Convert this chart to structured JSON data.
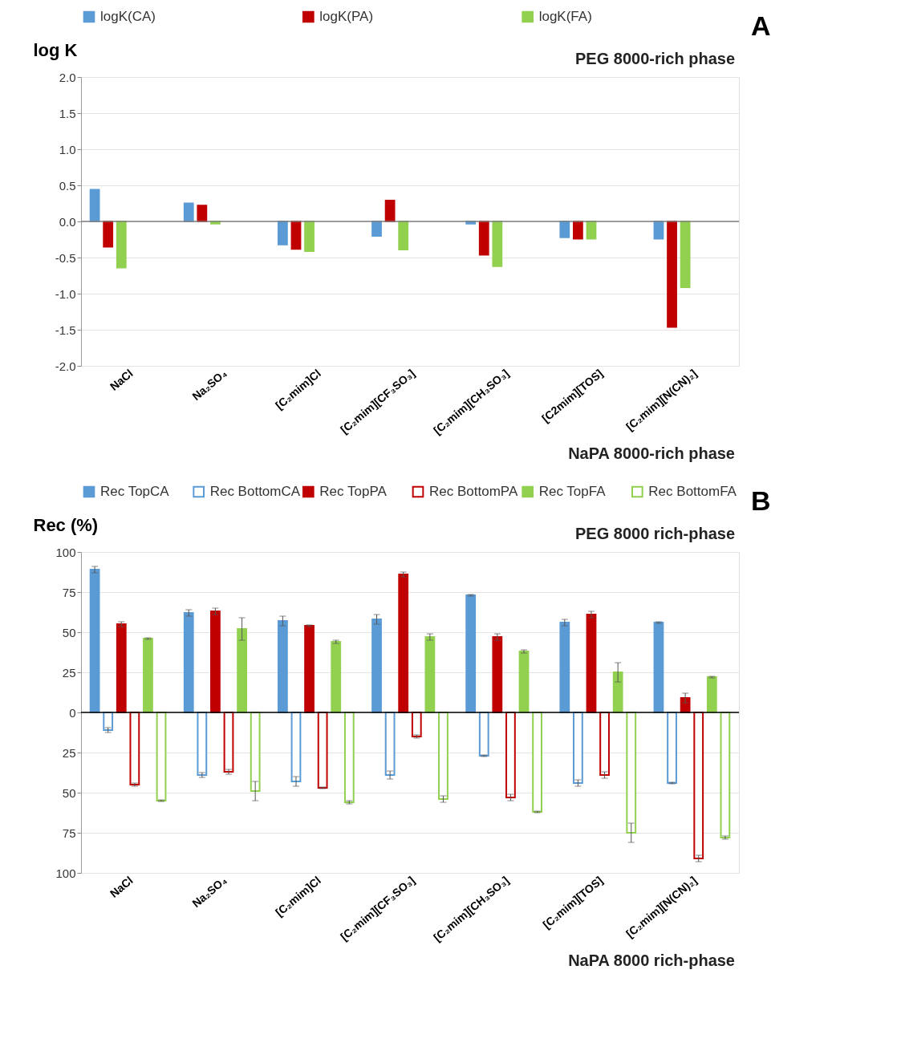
{
  "chart_data": [
    {
      "type": "bar",
      "title": "A",
      "ylabel": "log  K",
      "annotations": [
        "PEG 8000-rich phase",
        "NaPA 8000-rich phase"
      ],
      "categories": [
        "NaCl",
        "Na₂SO₄",
        "[C₂mim]Cl",
        "[C₂mim][CF₃SO₃]",
        "[C₂mim][CH₃SO₃]",
        "[C2mim][TOS]",
        "[C₂mim][N(CN)₂]"
      ],
      "series": [
        {
          "name": "logK(CA)",
          "color": "#5b9bd5",
          "values": [
            0.44,
            0.25,
            -0.32,
            -0.2,
            -0.03,
            -0.22,
            -0.24
          ]
        },
        {
          "name": "logK(PA)",
          "color": "#c00000",
          "values": [
            -0.35,
            0.22,
            -0.38,
            0.29,
            -0.46,
            -0.24,
            -1.46
          ]
        },
        {
          "name": "logK(FA)",
          "color": "#92d050",
          "values": [
            -0.64,
            -0.03,
            -0.41,
            -0.39,
            -0.62,
            -0.24,
            -0.91
          ]
        }
      ],
      "ylim": [
        -2,
        2
      ],
      "yticks": [
        {
          "value": -2,
          "label": "-2.0"
        },
        {
          "value": -1.5,
          "label": "-1.5"
        },
        {
          "value": -1,
          "label": "-1.0"
        },
        {
          "value": -0.5,
          "label": "-0.5"
        },
        {
          "value": 0,
          "label": "0.0"
        },
        {
          "value": 0.5,
          "label": "0.5"
        },
        {
          "value": 1,
          "label": "1.0"
        },
        {
          "value": 1.5,
          "label": "1.5"
        },
        {
          "value": 2,
          "label": "2.0"
        }
      ],
      "ref_lines": [
        {
          "axis": "y",
          "value": 0,
          "color": "#7f7f7f"
        }
      ],
      "grid": "y",
      "legend": "top"
    },
    {
      "type": "bar",
      "title": "B",
      "ylabel": "Rec (%)",
      "annotations": [
        "PEG 8000 rich-phase",
        "NaPA 8000 rich-phase"
      ],
      "categories": [
        "NaCl",
        "Na₂SO₄",
        "[C₂mim]Cl",
        "[C₂mim][CF₃SO₃]",
        "[C₂mim][CH₃SO₃]",
        "[C₂mim][TOS]",
        "[C₂mim][N(CN)₂]"
      ],
      "series": [
        {
          "name": "Rec TopCA",
          "color": "#5b9bd5",
          "values": [
            89,
            62,
            57,
            58,
            73,
            56,
            56
          ],
          "errors": [
            2,
            2,
            3,
            3,
            0.5,
            2,
            0.5
          ]
        },
        {
          "name": "Rec BottomCA",
          "color": "#5b9bd5",
          "colors": [
            "#ffffff",
            "#ffffff",
            "#ffffff",
            "#ffffff",
            "#ffffff",
            "#ffffff",
            "#ffffff"
          ],
          "values": [
            -11,
            -39,
            -43,
            -39,
            -27,
            -44,
            -44
          ],
          "errors": [
            1.5,
            1.5,
            3,
            2.5,
            0.5,
            2,
            0.5
          ]
        },
        {
          "name": "Rec TopPA",
          "color": "#c00000",
          "values": [
            55,
            63,
            54,
            86,
            47,
            61,
            9
          ],
          "errors": [
            1.5,
            2,
            0.5,
            1.5,
            2,
            2,
            3
          ]
        },
        {
          "name": "Rec BottomPA",
          "color": "#c00000",
          "colors": [
            "#ffffff",
            "#ffffff",
            "#ffffff",
            "#ffffff",
            "#ffffff",
            "#ffffff",
            "#ffffff"
          ],
          "values": [
            -45,
            -37,
            -47,
            -15,
            -53,
            -39,
            -91
          ],
          "errors": [
            1,
            1.5,
            0.5,
            1,
            2,
            2,
            2
          ]
        },
        {
          "name": "Rec TopFA",
          "color": "#92d050",
          "values": [
            46,
            52,
            44,
            47,
            38,
            25,
            22
          ],
          "errors": [
            0.5,
            7,
            1,
            2,
            1,
            6,
            0.5
          ]
        },
        {
          "name": "Rec BottomFA",
          "color": "#92d050",
          "colors": [
            "#ffffff",
            "#ffffff",
            "#ffffff",
            "#ffffff",
            "#ffffff",
            "#ffffff",
            "#ffffff"
          ],
          "values": [
            -55,
            -49,
            -56,
            -54,
            -62,
            -75,
            -78
          ],
          "errors": [
            0.5,
            6,
            1,
            2,
            0.5,
            6,
            1
          ]
        }
      ],
      "ylim": [
        -100,
        100
      ],
      "yticks": [
        {
          "value": -100,
          "label": "100"
        },
        {
          "value": -75,
          "label": "75"
        },
        {
          "value": -50,
          "label": "50"
        },
        {
          "value": -25,
          "label": "25"
        },
        0,
        25,
        50,
        75,
        100
      ],
      "ref_lines": [
        {
          "axis": "y",
          "value": 0,
          "color": "#000000"
        }
      ],
      "grid": "y",
      "legend": "top"
    }
  ]
}
